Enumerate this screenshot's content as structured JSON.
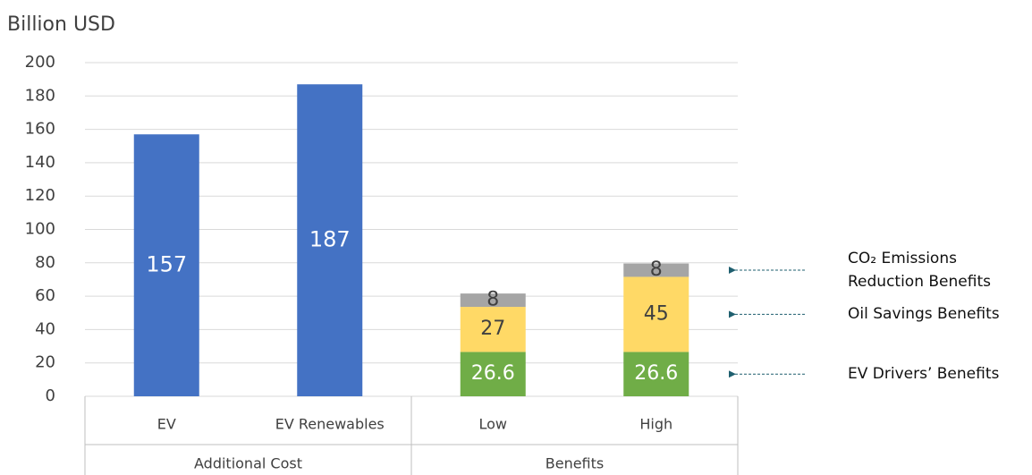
{
  "chart_data": {
    "type": "stacked_bar",
    "y_axis_title": "Billion USD",
    "groups": [
      {
        "label": "Additional Cost",
        "categories": [
          "EV",
          "EV Renewables"
        ]
      },
      {
        "label": "Benefits",
        "categories": [
          "Low",
          "High"
        ]
      }
    ],
    "series": [
      {
        "color": "#4472c4",
        "values": [
          157,
          187,
          null,
          null
        ]
      },
      {
        "name": "EV Drivers’ Benefits",
        "color": "#70ad47",
        "values": [
          null,
          null,
          26.6,
          26.6
        ]
      },
      {
        "name": "Oil Savings Benefits",
        "color": "#ffd966",
        "values": [
          null,
          null,
          27,
          45
        ]
      },
      {
        "name": "CO₂ Emissions Reduction Benefits",
        "color": "#a5a5a5",
        "values": [
          null,
          null,
          8,
          8
        ]
      }
    ],
    "ylim": [
      0,
      200
    ],
    "yticks": [
      0,
      20,
      40,
      60,
      80,
      100,
      120,
      140,
      160,
      180,
      200
    ],
    "grid": true
  }
}
